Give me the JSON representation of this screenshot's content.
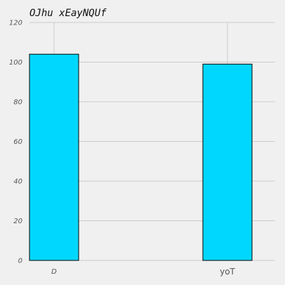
{
  "chart_data": {
    "type": "bar",
    "title": "OJhu xEayNQUf",
    "xlabel": "",
    "ylabel": "",
    "categories": [
      "D",
      "yoT"
    ],
    "values": [
      104,
      99
    ],
    "ylim": [
      0,
      120
    ],
    "yticks": [
      0,
      20,
      40,
      60,
      80,
      100,
      120
    ],
    "grid": true,
    "colors": {
      "background": "#f0f0f0",
      "bar_fill": "#00d7ff",
      "bar_edge": "#000000",
      "grid": "#cbcbcb"
    }
  }
}
